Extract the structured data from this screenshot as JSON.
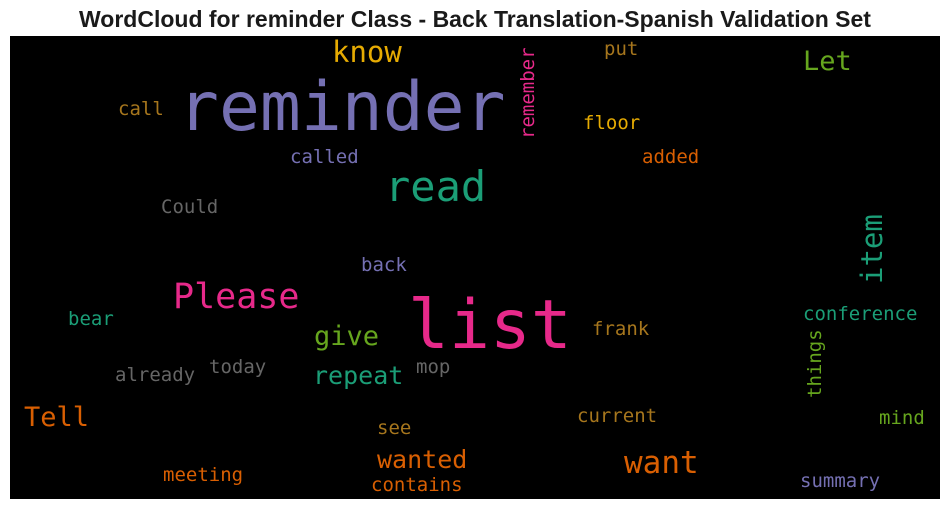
{
  "chart_data": {
    "type": "wordcloud",
    "title": "WordCloud for reminder Class - Back Translation-Spanish Validation Set",
    "background": "#000000",
    "palette": [
      "#7570b3",
      "#e7298a",
      "#1b9e77",
      "#d95f02",
      "#66a61e",
      "#e6ab02",
      "#a6761d",
      "#666666"
    ],
    "words": [
      {
        "text": "reminder",
        "color": "#7570b3",
        "orientation": "horizontal"
      },
      {
        "text": "list",
        "color": "#e7298a",
        "orientation": "horizontal"
      },
      {
        "text": "read",
        "color": "#1b9e77",
        "orientation": "horizontal"
      },
      {
        "text": "Please",
        "color": "#e7298a",
        "orientation": "horizontal"
      },
      {
        "text": "want",
        "color": "#d95f02",
        "orientation": "horizontal"
      },
      {
        "text": "know",
        "color": "#e6ab02",
        "orientation": "horizontal"
      },
      {
        "text": "item",
        "color": "#1b9e77",
        "orientation": "vertical"
      },
      {
        "text": "Let",
        "color": "#66a61e",
        "orientation": "horizontal"
      },
      {
        "text": "Tell",
        "color": "#d95f02",
        "orientation": "horizontal"
      },
      {
        "text": "wanted",
        "color": "#d95f02",
        "orientation": "horizontal"
      },
      {
        "text": "repeat",
        "color": "#1b9e77",
        "orientation": "horizontal"
      },
      {
        "text": "give",
        "color": "#66a61e",
        "orientation": "horizontal"
      },
      {
        "text": "remember",
        "color": "#e7298a",
        "orientation": "vertical"
      },
      {
        "text": "call",
        "color": "#a6761d",
        "orientation": "horizontal"
      },
      {
        "text": "put",
        "color": "#a6761d",
        "orientation": "horizontal"
      },
      {
        "text": "floor",
        "color": "#e6ab02",
        "orientation": "horizontal"
      },
      {
        "text": "called",
        "color": "#7570b3",
        "orientation": "horizontal"
      },
      {
        "text": "added",
        "color": "#d95f02",
        "orientation": "horizontal"
      },
      {
        "text": "Could",
        "color": "#666666",
        "orientation": "horizontal"
      },
      {
        "text": "back",
        "color": "#7570b3",
        "orientation": "horizontal"
      },
      {
        "text": "bear",
        "color": "#1b9e77",
        "orientation": "horizontal"
      },
      {
        "text": "frank",
        "color": "#a6761d",
        "orientation": "horizontal"
      },
      {
        "text": "conference",
        "color": "#1b9e77",
        "orientation": "horizontal"
      },
      {
        "text": "things",
        "color": "#66a61e",
        "orientation": "vertical"
      },
      {
        "text": "already",
        "color": "#666666",
        "orientation": "horizontal"
      },
      {
        "text": "today",
        "color": "#666666",
        "orientation": "horizontal"
      },
      {
        "text": "mop",
        "color": "#666666",
        "orientation": "horizontal"
      },
      {
        "text": "current",
        "color": "#a6761d",
        "orientation": "horizontal"
      },
      {
        "text": "mind",
        "color": "#66a61e",
        "orientation": "horizontal"
      },
      {
        "text": "see",
        "color": "#a6761d",
        "orientation": "horizontal"
      },
      {
        "text": "meeting",
        "color": "#d95f02",
        "orientation": "horizontal"
      },
      {
        "text": "contains",
        "color": "#d95f02",
        "orientation": "horizontal"
      },
      {
        "text": "summary",
        "color": "#7570b3",
        "orientation": "horizontal"
      }
    ]
  }
}
